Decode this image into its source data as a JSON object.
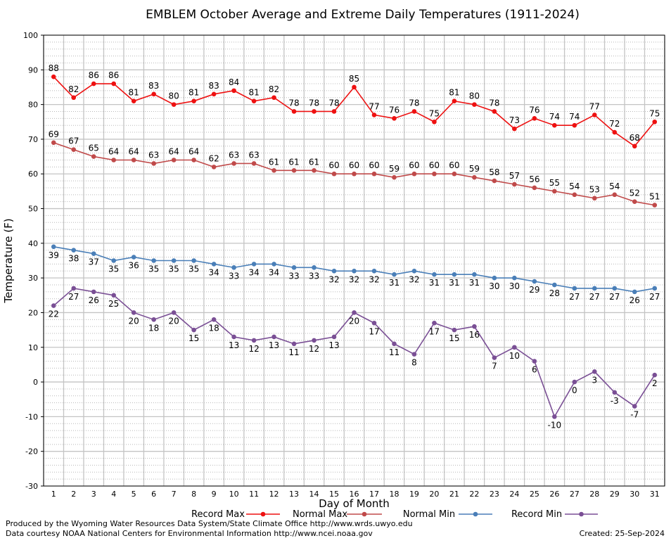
{
  "chart_data": {
    "type": "line",
    "title": "EMBLEM October Average and Extreme Daily Temperatures (1911-2024)",
    "xlabel": "Day of Month",
    "ylabel": "Temperature (F)",
    "xlim": [
      1,
      31
    ],
    "ylim": [
      -30,
      100
    ],
    "yticks": [
      -30,
      -20,
      -10,
      0,
      10,
      20,
      30,
      40,
      50,
      60,
      70,
      80,
      90,
      100
    ],
    "x": [
      1,
      2,
      3,
      4,
      5,
      6,
      7,
      8,
      9,
      10,
      11,
      12,
      13,
      14,
      15,
      16,
      17,
      18,
      19,
      20,
      21,
      22,
      23,
      24,
      25,
      26,
      27,
      28,
      29,
      30,
      31
    ],
    "grid": true,
    "legend_position": "bottom",
    "series": [
      {
        "name": "Record Max",
        "color": "#ee1111",
        "label_position": "above",
        "values": [
          88,
          82,
          86,
          86,
          81,
          83,
          80,
          81,
          83,
          84,
          81,
          82,
          78,
          78,
          78,
          85,
          77,
          76,
          78,
          75,
          81,
          80,
          78,
          73,
          76,
          74,
          74,
          77,
          72,
          68,
          75
        ]
      },
      {
        "name": "Normal Max",
        "color": "#c04a4a",
        "label_position": "above",
        "values": [
          69,
          67,
          65,
          64,
          64,
          63,
          64,
          64,
          62,
          63,
          63,
          61,
          61,
          61,
          60,
          60,
          60,
          59,
          60,
          60,
          60,
          59,
          58,
          57,
          56,
          55,
          54,
          53,
          54,
          52,
          51
        ]
      },
      {
        "name": "Normal Min",
        "color": "#4a7fb8",
        "label_position": "below",
        "values": [
          39,
          38,
          37,
          35,
          36,
          35,
          35,
          35,
          34,
          33,
          34,
          34,
          33,
          33,
          32,
          32,
          32,
          31,
          32,
          31,
          31,
          31,
          30,
          30,
          29,
          28,
          27,
          27,
          27,
          26,
          27
        ]
      },
      {
        "name": "Record Min",
        "color": "#7a4f95",
        "label_position": "below",
        "values": [
          22,
          27,
          26,
          25,
          20,
          18,
          20,
          15,
          18,
          13,
          12,
          13,
          11,
          12,
          13,
          20,
          17,
          11,
          8,
          17,
          15,
          16,
          7,
          10,
          6,
          -10,
          0,
          3,
          -3,
          -7,
          2
        ]
      }
    ]
  },
  "footer": {
    "producer": "Produced by the Wyoming Water Resources Data System/State Climate Office http://www.wrds.uwyo.edu",
    "courtesy": "Data courtesy NOAA National Centers for Environmental Information http://www.ncei.noaa.gov",
    "created": "Created:  25-Sep-2024"
  }
}
